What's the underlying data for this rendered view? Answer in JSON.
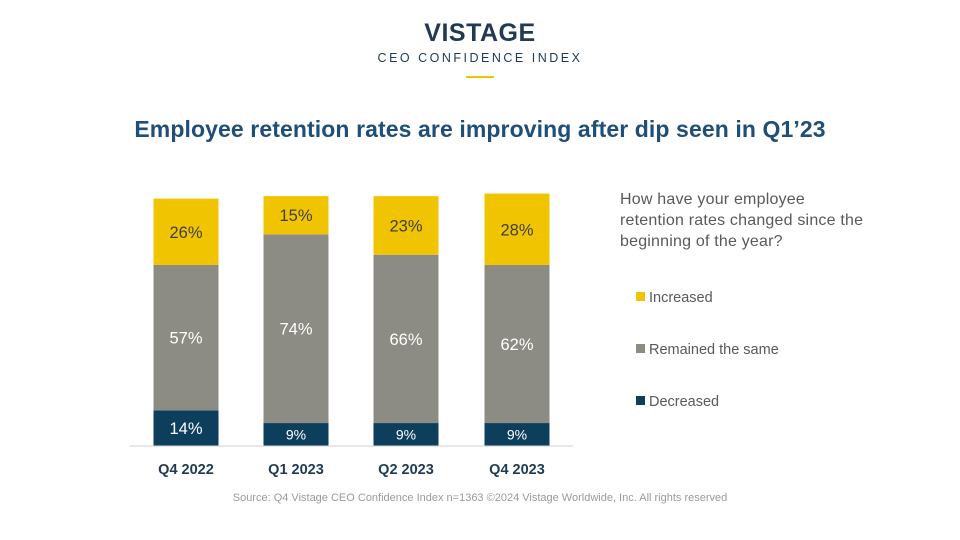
{
  "brand": {
    "name": "VISTAGE",
    "subtitle": "CEO CONFIDENCE INDEX"
  },
  "chart_data": {
    "type": "bar",
    "stacked": true,
    "title": "Employee retention rates are improving after dip seen in Q1’23",
    "question": "How have your employee retention rates changed since the beginning of the year?",
    "categories": [
      "Q4 2022",
      "Q1 2023",
      "Q2 2023",
      "Q4 2023"
    ],
    "series": [
      {
        "name": "Decreased",
        "values": [
          14,
          9,
          9,
          9
        ],
        "labels": [
          "14%",
          "9%",
          "9%",
          "9%"
        ],
        "color": "#0d3f5c"
      },
      {
        "name": "Remained the same",
        "values": [
          57,
          74,
          66,
          62
        ],
        "labels": [
          "57%",
          "74%",
          "66%",
          "62%"
        ],
        "color": "#8c8c84"
      },
      {
        "name": "Increased",
        "values": [
          26,
          15,
          23,
          28
        ],
        "labels": [
          "26%",
          "15%",
          "23%",
          "28%"
        ],
        "color": "#f0c400"
      }
    ],
    "legend_order": [
      "Increased",
      "Remained the same",
      "Decreased"
    ],
    "legend_position": "right",
    "ylim": [
      0,
      100
    ],
    "grid": false
  },
  "source": "Source: Q4 Vistage CEO Confidence Index n=1363 ©2024 Vistage Worldwide, Inc. All rights reserved"
}
